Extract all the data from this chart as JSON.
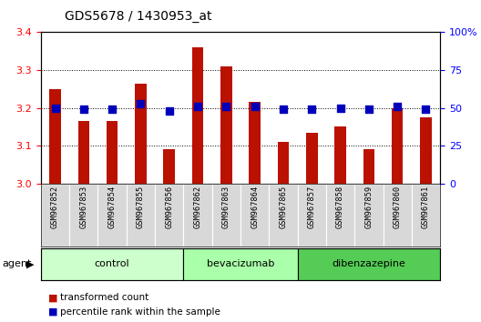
{
  "title": "GDS5678 / 1430953_at",
  "samples": [
    "GSM967852",
    "GSM967853",
    "GSM967854",
    "GSM967855",
    "GSM967856",
    "GSM967862",
    "GSM967863",
    "GSM967864",
    "GSM967865",
    "GSM967857",
    "GSM967858",
    "GSM967859",
    "GSM967860",
    "GSM967861"
  ],
  "transformed_counts": [
    3.25,
    3.165,
    3.165,
    3.265,
    3.09,
    3.36,
    3.31,
    3.215,
    3.11,
    3.135,
    3.15,
    3.09,
    3.2,
    3.175
  ],
  "percentile_ranks": [
    50,
    49,
    49,
    53,
    48,
    51,
    51,
    51,
    49,
    49,
    50,
    49,
    51,
    49
  ],
  "groups": [
    {
      "label": "control",
      "start": 0,
      "end": 5
    },
    {
      "label": "bevacizumab",
      "start": 5,
      "end": 9
    },
    {
      "label": "dibenzazepine",
      "start": 9,
      "end": 14
    }
  ],
  "group_colors": [
    "#ccffcc",
    "#aaffaa",
    "#55cc55"
  ],
  "ylim_left": [
    3.0,
    3.4
  ],
  "ylim_right": [
    0,
    100
  ],
  "yticks_left": [
    3.0,
    3.1,
    3.2,
    3.3,
    3.4
  ],
  "yticks_right": [
    0,
    25,
    50,
    75,
    100
  ],
  "bar_color": "#bb1100",
  "dot_color": "#0000bb",
  "bar_width": 0.4,
  "dot_size": 40,
  "xlabel_area_color": "#cccccc",
  "agent_label": "agent",
  "legend_bar_label": "transformed count",
  "legend_dot_label": "percentile rank within the sample"
}
